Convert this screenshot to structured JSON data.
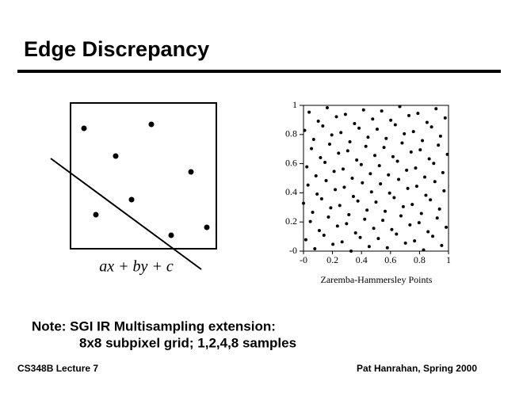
{
  "header": {
    "title": "Edge Discrepancy"
  },
  "diagram": {
    "label": "ax + by + c"
  },
  "chart_data": {
    "type": "scatter",
    "x_label": "Zaremba-Hammersley Points",
    "color": "#000000",
    "xlim": [
      0,
      1
    ],
    "ylim": [
      0,
      1
    ],
    "xticks": [
      {
        "value": 0,
        "label": "-0"
      },
      0.2,
      0.4,
      0.6,
      0.8,
      1
    ],
    "yticks": [
      {
        "value": 0,
        "label": "-0"
      },
      0.2,
      0.4,
      0.6,
      0.8,
      1
    ],
    "x": [
      0,
      0.008,
      0.016,
      0.023,
      0.031,
      0.039,
      0.047,
      0.055,
      0.063,
      0.07,
      0.078,
      0.086,
      0.094,
      0.102,
      0.109,
      0.117,
      0.125,
      0.133,
      0.141,
      0.148,
      0.156,
      0.164,
      0.172,
      0.18,
      0.188,
      0.195,
      0.203,
      0.211,
      0.219,
      0.227,
      0.234,
      0.242,
      0.25,
      0.258,
      0.266,
      0.273,
      0.281,
      0.289,
      0.297,
      0.305,
      0.313,
      0.32,
      0.328,
      0.336,
      0.344,
      0.352,
      0.359,
      0.367,
      0.375,
      0.383,
      0.391,
      0.398,
      0.406,
      0.414,
      0.422,
      0.43,
      0.438,
      0.445,
      0.453,
      0.461,
      0.469,
      0.477,
      0.484,
      0.492,
      0.5,
      0.508,
      0.516,
      0.523,
      0.531,
      0.539,
      0.547,
      0.555,
      0.563,
      0.57,
      0.578,
      0.586,
      0.594,
      0.602,
      0.609,
      0.617,
      0.625,
      0.633,
      0.641,
      0.648,
      0.656,
      0.664,
      0.672,
      0.68,
      0.688,
      0.695,
      0.703,
      0.711,
      0.719,
      0.727,
      0.734,
      0.742,
      0.75,
      0.758,
      0.766,
      0.773,
      0.781,
      0.789,
      0.797,
      0.805,
      0.813,
      0.82,
      0.828,
      0.836,
      0.844,
      0.852,
      0.859,
      0.867,
      0.875,
      0.883,
      0.891,
      0.898,
      0.906,
      0.914,
      0.922,
      0.93,
      0.938,
      0.945,
      0.953,
      0.961,
      0.969,
      0.977,
      0.984,
      0.992
    ],
    "values": [
      0.328,
      0.828,
      0.078,
      0.578,
      0.453,
      0.953,
      0.203,
      0.703,
      0.266,
      0.766,
      0.016,
      0.516,
      0.391,
      0.891,
      0.141,
      0.641,
      0.359,
      0.859,
      0.109,
      0.609,
      0.484,
      0.984,
      0.234,
      0.734,
      0.297,
      0.797,
      0.047,
      0.547,
      0.422,
      0.922,
      0.172,
      0.672,
      0.313,
      0.813,
      0.063,
      0.563,
      0.438,
      0.938,
      0.188,
      0.688,
      0.25,
      0.75,
      0,
      0.5,
      0.375,
      0.875,
      0.125,
      0.625,
      0.344,
      0.844,
      0.094,
      0.594,
      0.469,
      0.969,
      0.219,
      0.719,
      0.281,
      0.781,
      0.031,
      0.531,
      0.406,
      0.906,
      0.156,
      0.656,
      0.336,
      0.836,
      0.086,
      0.586,
      0.461,
      0.961,
      0.211,
      0.711,
      0.273,
      0.773,
      0.023,
      0.523,
      0.398,
      0.898,
      0.148,
      0.648,
      0.367,
      0.867,
      0.117,
      0.617,
      0.492,
      0.992,
      0.242,
      0.742,
      0.305,
      0.805,
      0.055,
      0.555,
      0.43,
      0.93,
      0.18,
      0.68,
      0.32,
      0.82,
      0.07,
      0.57,
      0.445,
      0.945,
      0.195,
      0.695,
      0.258,
      0.758,
      0.008,
      0.508,
      0.383,
      0.883,
      0.133,
      0.633,
      0.352,
      0.852,
      0.102,
      0.602,
      0.477,
      0.977,
      0.227,
      0.727,
      0.289,
      0.789,
      0.039,
      0.539,
      0.414,
      0.914,
      0.164,
      0.664
    ]
  },
  "note": {
    "lines": [
      "Note: SGI IR Multisampling extension:",
      "8x8 subpixel grid; 1,2,4,8 samples"
    ]
  },
  "footer": {
    "left": "CS348B Lecture 7",
    "right": "Pat Hanrahan, Spring 2000"
  }
}
